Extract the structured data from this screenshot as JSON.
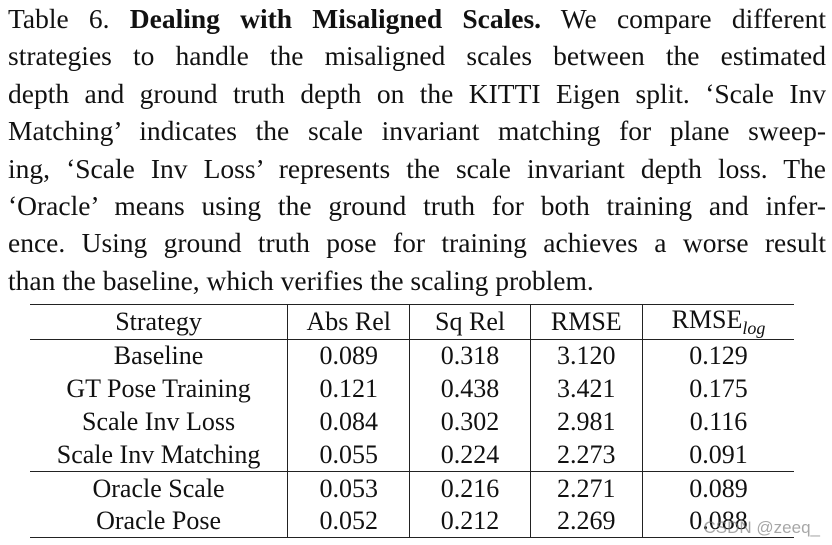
{
  "caption": {
    "line1_prefix": "Table 6. ",
    "line1_bold": "Dealing with Misaligned Scales.",
    "line1_rest": " We compare different",
    "line2": "strategies to handle the misaligned scales between the estimated",
    "line3": "depth and ground truth depth on the KITTI Eigen split. ‘Scale Inv",
    "line4": "Matching’ indicates the scale invariant matching for plane sweep-",
    "line5": "ing, ‘Scale Inv Loss’ represents the scale invariant depth loss. The",
    "line6": "‘Oracle’ means using the ground truth for both training and infer-",
    "line7": "ence. Using ground truth pose for training achieves a worse result",
    "line8": "than the baseline, which verifies the scaling problem."
  },
  "table": {
    "headers": {
      "strategy": "Strategy",
      "abs_rel": "Abs Rel",
      "sq_rel": "Sq Rel",
      "rmse": "RMSE",
      "rmse_log_base": "RMSE",
      "rmse_log_sub": "log"
    },
    "group1": [
      {
        "strategy": "Baseline",
        "abs_rel": "0.089",
        "sq_rel": "0.318",
        "rmse": "3.120",
        "rmse_log": "0.129"
      },
      {
        "strategy": "GT Pose Training",
        "abs_rel": "0.121",
        "sq_rel": "0.438",
        "rmse": "3.421",
        "rmse_log": "0.175"
      },
      {
        "strategy": "Scale Inv Loss",
        "abs_rel": "0.084",
        "sq_rel": "0.302",
        "rmse": "2.981",
        "rmse_log": "0.116"
      },
      {
        "strategy": "Scale Inv Matching",
        "abs_rel": "0.055",
        "sq_rel": "0.224",
        "rmse": "2.273",
        "rmse_log": "0.091"
      }
    ],
    "group2": [
      {
        "strategy": "Oracle Scale",
        "abs_rel": "0.053",
        "sq_rel": "0.216",
        "rmse": "2.271",
        "rmse_log": "0.089"
      },
      {
        "strategy": "Oracle Pose",
        "abs_rel": "0.052",
        "sq_rel": "0.212",
        "rmse": "2.269",
        "rmse_log": "0.088"
      }
    ]
  },
  "watermark": "CSDN @zeeq_"
}
